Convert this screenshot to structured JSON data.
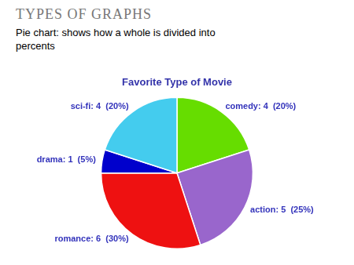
{
  "chart_data": {
    "type": "pie",
    "title": "Favorite Type of Movie",
    "subtitle": "Pie chart: shows how a whole is divided into\npercents",
    "annotations": [
      "TYPES OF GRAPHS"
    ],
    "values": [
      20,
      25,
      30,
      5,
      20
    ],
    "value_labels": [
      "comedy: 4  (20%)",
      "action: 5  (25%)",
      "romance: 6  (30%)",
      "drama: 1  (5%)",
      "sci-fi: 4  (20%)"
    ],
    "colors": [
      "#66dd00",
      "#9966cc",
      "#ee1111",
      "#0000cc",
      "#44ccee"
    ]
  }
}
